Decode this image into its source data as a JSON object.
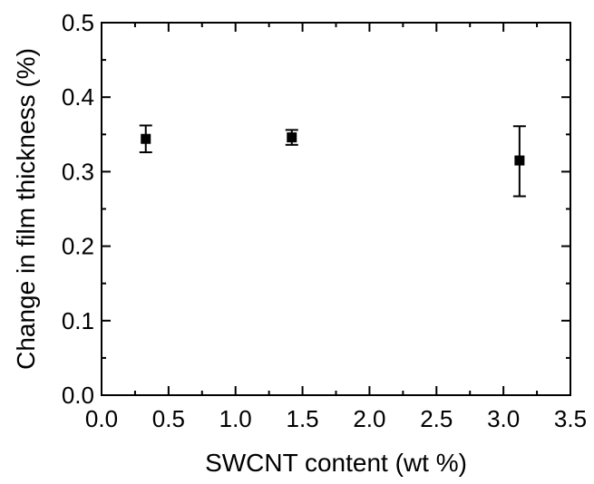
{
  "chart_data": {
    "type": "scatter",
    "xlabel": "SWCNT content (wt %)",
    "ylabel": "Change in film thickness (%)",
    "xlim": [
      0.0,
      3.5
    ],
    "ylim": [
      0.0,
      0.5
    ],
    "x_ticks": [
      "0.0",
      "0.5",
      "1.0",
      "1.5",
      "2.0",
      "2.5",
      "3.0",
      "3.5"
    ],
    "y_ticks": [
      "0.0",
      "0.1",
      "0.2",
      "0.3",
      "0.4",
      "0.5"
    ],
    "grid": false,
    "legend": "none",
    "marker": "filled-square",
    "color": "#000000",
    "series": [
      {
        "x": [
          0.33,
          1.42,
          3.12
        ],
        "y": [
          0.344,
          0.346,
          0.315
        ],
        "y_err_lower": [
          0.018,
          0.01,
          0.048
        ],
        "y_err_upper": [
          0.018,
          0.01,
          0.046
        ]
      }
    ]
  }
}
